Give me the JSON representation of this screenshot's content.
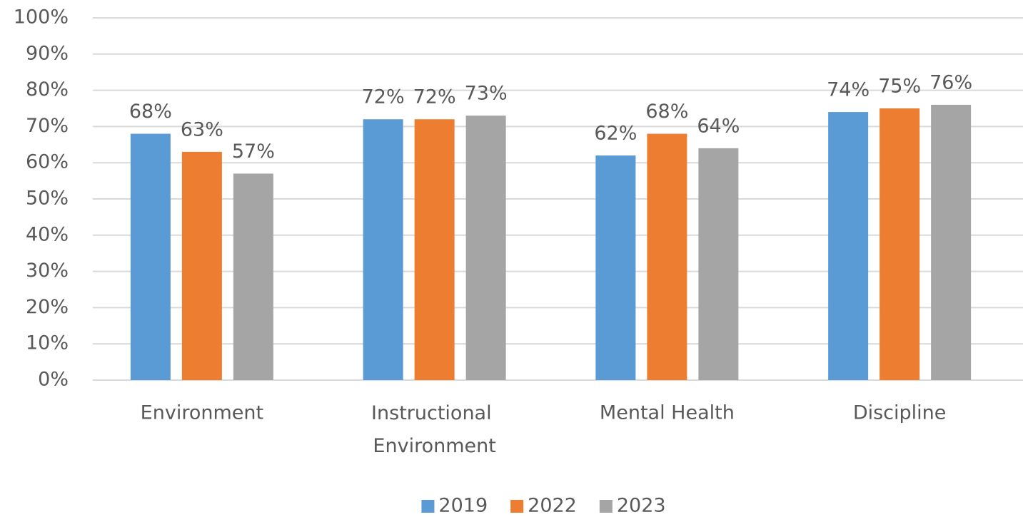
{
  "chart_data": {
    "type": "bar",
    "categories": [
      "Environment",
      "Instructional Environment",
      "Mental Health",
      "Discipline"
    ],
    "series": [
      {
        "name": "2019",
        "color": "#5b9bd5",
        "values": [
          68,
          72,
          62,
          74
        ],
        "value_labels": [
          "68%",
          "72%",
          "62%",
          "74%"
        ]
      },
      {
        "name": "2022",
        "color": "#ed7d31",
        "values": [
          63,
          72,
          68,
          75
        ],
        "value_labels": [
          "63%",
          "72%",
          "68%",
          "75%"
        ]
      },
      {
        "name": "2023",
        "color": "#a5a5a5",
        "values": [
          57,
          73,
          64,
          76
        ],
        "value_labels": [
          "57%",
          "73%",
          "64%",
          "76%"
        ]
      }
    ],
    "ylim": [
      0,
      100
    ],
    "yticks": [
      {
        "value": 0,
        "label": "0%"
      },
      {
        "value": 10,
        "label": "10%"
      },
      {
        "value": 20,
        "label": "20%"
      },
      {
        "value": 30,
        "label": "30%"
      },
      {
        "value": 40,
        "label": "40%"
      },
      {
        "value": 50,
        "label": "50%"
      },
      {
        "value": 60,
        "label": "60%"
      },
      {
        "value": 70,
        "label": "70%"
      },
      {
        "value": 80,
        "label": "80%"
      },
      {
        "value": 90,
        "label": "90%"
      },
      {
        "value": 100,
        "label": "100%"
      }
    ],
    "grid": true,
    "legend": "bottom"
  }
}
